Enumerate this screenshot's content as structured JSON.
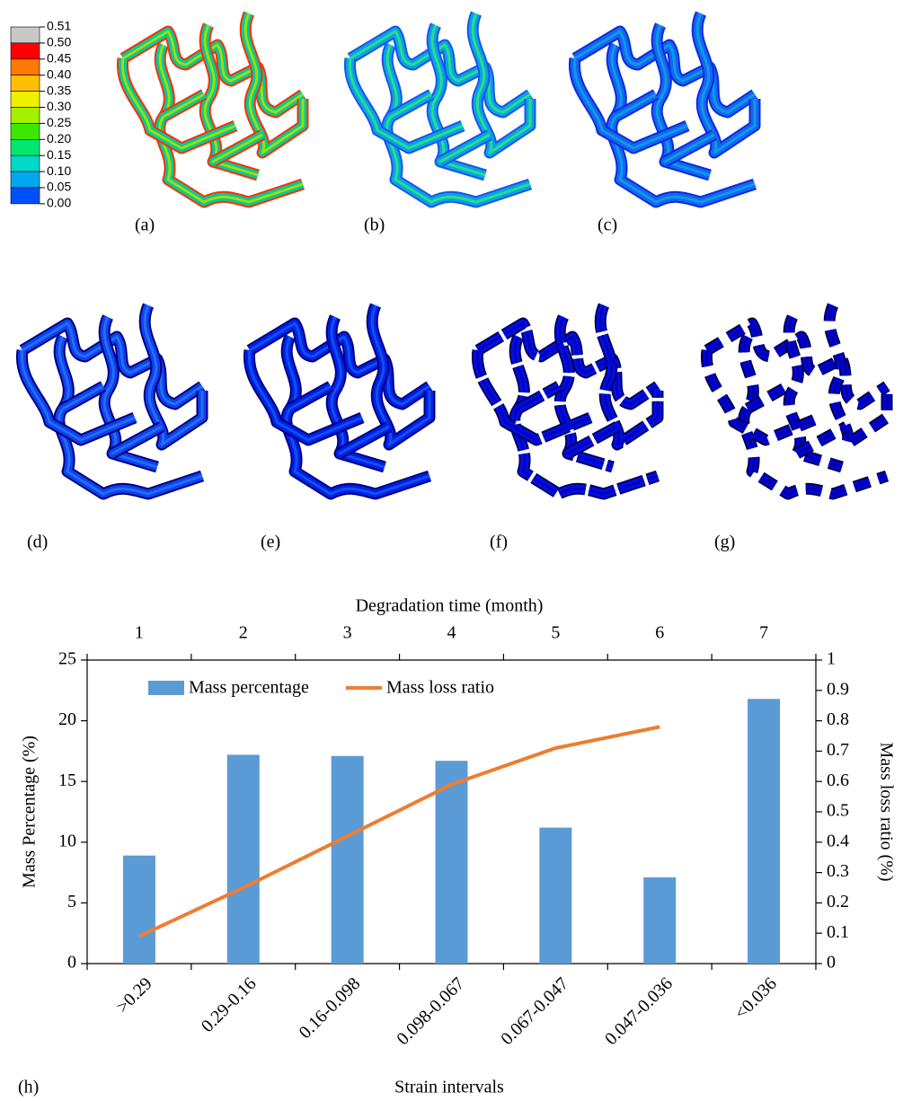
{
  "colorbar": {
    "ticks": [
      {
        "value": 0.51,
        "label": "0.51"
      },
      {
        "value": 0.5,
        "label": "0.50"
      },
      {
        "value": 0.45,
        "label": "0.45"
      },
      {
        "value": 0.4,
        "label": "0.40"
      },
      {
        "value": 0.35,
        "label": "0.35"
      },
      {
        "value": 0.3,
        "label": "0.30"
      },
      {
        "value": 0.25,
        "label": "0.25"
      },
      {
        "value": 0.2,
        "label": "0.20"
      },
      {
        "value": 0.15,
        "label": "0.15"
      },
      {
        "value": 0.1,
        "label": "0.10"
      },
      {
        "value": 0.05,
        "label": "0.05"
      },
      {
        "value": 0,
        "label": "0.00"
      }
    ],
    "colors": [
      "#c8c8c8",
      "#ff0000",
      "#ff7800",
      "#ffbe00",
      "#eef000",
      "#a4f000",
      "#3ce800",
      "#00e870",
      "#00d8c8",
      "#00a8f0",
      "#0050ff"
    ],
    "last_color": "#0000ff"
  },
  "panels": [
    "(a)",
    "(b)",
    "(c)",
    "(d)",
    "(e)",
    "(f)",
    "(g)"
  ],
  "chart_data": {
    "type": "bar",
    "panel_label": "(h)",
    "xlabel": "Strain intervals",
    "x2label": "Degradation time (month)",
    "ylabel": "Mass Percentage (%)",
    "y2label": "Mass loss ratio (%)",
    "categories": [
      ">0.29",
      "0.29-0.16",
      "0.16-0.098",
      "0.098-0.067",
      "0.067-0.047",
      "0.047-0.036",
      "<0.036"
    ],
    "x2categories": [
      1,
      2,
      3,
      4,
      5,
      6,
      7
    ],
    "series": [
      {
        "name": "Mass percentage",
        "type": "bar",
        "color": "#5b9bd5",
        "values": [
          8.9,
          17.2,
          17.1,
          16.7,
          11.2,
          7.1,
          21.8
        ]
      },
      {
        "name": "Mass loss ratio",
        "type": "line",
        "axis": "y2",
        "color": "#ed7d31",
        "values": [
          0.09,
          0.25,
          0.42,
          0.59,
          0.71,
          0.78,
          null
        ]
      }
    ],
    "ylim": [
      0,
      25
    ],
    "yticks": [
      0,
      5,
      10,
      15,
      20,
      25
    ],
    "y2lim": [
      0,
      1
    ],
    "y2ticks": [
      0,
      0.1,
      0.2,
      0.3,
      0.4,
      0.5,
      0.6,
      0.7,
      0.8,
      0.9,
      1
    ],
    "legend": "top"
  }
}
